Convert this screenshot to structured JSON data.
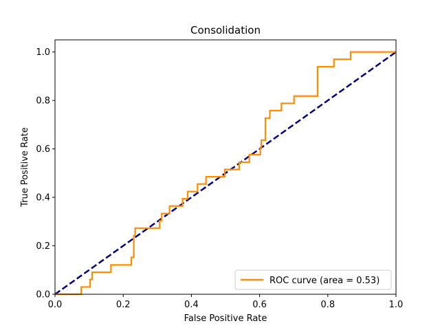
{
  "chart_data": {
    "type": "line",
    "title": "Consolidation",
    "xlabel": "False Positive Rate",
    "ylabel": "True Positive Rate",
    "xlim": [
      0.0,
      1.0
    ],
    "ylim": [
      0.0,
      1.05
    ],
    "x_ticks": [
      "0.0",
      "0.2",
      "0.4",
      "0.6",
      "0.8",
      "1.0"
    ],
    "y_ticks": [
      "0.0",
      "0.2",
      "0.4",
      "0.6",
      "0.8",
      "1.0"
    ],
    "grid": false,
    "legend_position": "bottom-right",
    "series": [
      {
        "name": "ROC curve (area = 0.53)",
        "color": "#ff8c00",
        "style": "solid",
        "points": [
          [
            0.0,
            0.0
          ],
          [
            0.077,
            0.0
          ],
          [
            0.077,
            0.03
          ],
          [
            0.103,
            0.03
          ],
          [
            0.103,
            0.061
          ],
          [
            0.109,
            0.061
          ],
          [
            0.109,
            0.091
          ],
          [
            0.164,
            0.091
          ],
          [
            0.164,
            0.121
          ],
          [
            0.224,
            0.121
          ],
          [
            0.224,
            0.152
          ],
          [
            0.231,
            0.152
          ],
          [
            0.231,
            0.242
          ],
          [
            0.235,
            0.242
          ],
          [
            0.235,
            0.273
          ],
          [
            0.307,
            0.273
          ],
          [
            0.307,
            0.303
          ],
          [
            0.313,
            0.303
          ],
          [
            0.313,
            0.333
          ],
          [
            0.336,
            0.333
          ],
          [
            0.336,
            0.364
          ],
          [
            0.374,
            0.364
          ],
          [
            0.374,
            0.394
          ],
          [
            0.389,
            0.394
          ],
          [
            0.389,
            0.424
          ],
          [
            0.418,
            0.424
          ],
          [
            0.418,
            0.455
          ],
          [
            0.443,
            0.455
          ],
          [
            0.443,
            0.485
          ],
          [
            0.498,
            0.485
          ],
          [
            0.498,
            0.515
          ],
          [
            0.54,
            0.515
          ],
          [
            0.54,
            0.545
          ],
          [
            0.57,
            0.545
          ],
          [
            0.57,
            0.576
          ],
          [
            0.602,
            0.576
          ],
          [
            0.602,
            0.606
          ],
          [
            0.605,
            0.606
          ],
          [
            0.605,
            0.636
          ],
          [
            0.617,
            0.636
          ],
          [
            0.617,
            0.727
          ],
          [
            0.63,
            0.727
          ],
          [
            0.63,
            0.758
          ],
          [
            0.664,
            0.758
          ],
          [
            0.664,
            0.788
          ],
          [
            0.701,
            0.788
          ],
          [
            0.701,
            0.818
          ],
          [
            0.77,
            0.818
          ],
          [
            0.77,
            0.939
          ],
          [
            0.818,
            0.939
          ],
          [
            0.818,
            0.97
          ],
          [
            0.867,
            0.97
          ],
          [
            0.867,
            1.0
          ],
          [
            1.0,
            1.0
          ]
        ]
      },
      {
        "name": "",
        "color": "#000080",
        "style": "dashed",
        "points": [
          [
            0.0,
            0.0
          ],
          [
            1.0,
            1.0
          ]
        ]
      }
    ]
  }
}
